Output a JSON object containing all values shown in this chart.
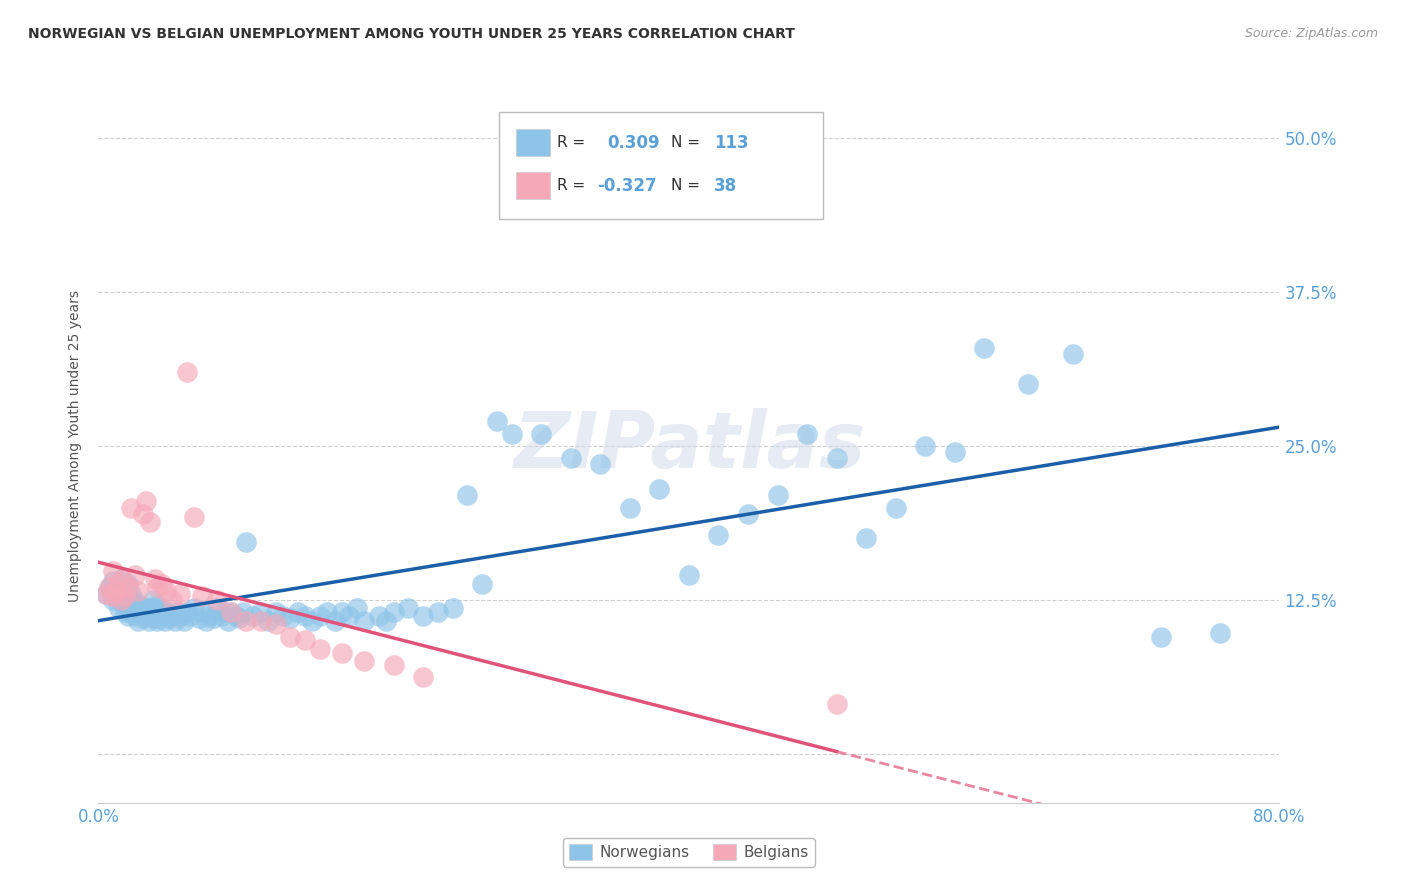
{
  "title": "NORWEGIAN VS BELGIAN UNEMPLOYMENT AMONG YOUTH UNDER 25 YEARS CORRELATION CHART",
  "source": "Source: ZipAtlas.com",
  "ylabel": "Unemployment Among Youth under 25 years",
  "xlim": [
    0.0,
    0.8
  ],
  "ylim": [
    -0.04,
    0.54
  ],
  "yticks": [
    0.0,
    0.125,
    0.25,
    0.375,
    0.5
  ],
  "ytick_labels": [
    "",
    "12.5%",
    "25.0%",
    "37.5%",
    "50.0%"
  ],
  "xticks": [
    0.0,
    0.1,
    0.2,
    0.3,
    0.4,
    0.5,
    0.6,
    0.7,
    0.8
  ],
  "xtick_labels": [
    "0.0%",
    "",
    "",
    "",
    "",
    "",
    "",
    "",
    "80.0%"
  ],
  "legend_r_norwegian": "0.309",
  "legend_n_norwegian": "113",
  "legend_r_belgian": "-0.327",
  "legend_n_belgian": "38",
  "norwegian_color": "#8ec4e8",
  "belgian_color": "#f5a8b8",
  "trend_norwegian_color": "#1a5fa8",
  "trend_belgian_color": "#e0547a",
  "watermark": "ZIPatlas",
  "background_color": "#ffffff",
  "grid_color": "#d0d0d0",
  "tick_label_color": "#5aa0d8",
  "norwegians_x": [
    0.005,
    0.008,
    0.01,
    0.01,
    0.012,
    0.013,
    0.014,
    0.015,
    0.016,
    0.016,
    0.018,
    0.019,
    0.02,
    0.02,
    0.02,
    0.021,
    0.022,
    0.022,
    0.023,
    0.024,
    0.025,
    0.025,
    0.026,
    0.027,
    0.028,
    0.029,
    0.03,
    0.03,
    0.031,
    0.032,
    0.033,
    0.034,
    0.035,
    0.036,
    0.037,
    0.038,
    0.039,
    0.04,
    0.041,
    0.042,
    0.043,
    0.044,
    0.045,
    0.046,
    0.047,
    0.048,
    0.05,
    0.052,
    0.054,
    0.056,
    0.058,
    0.06,
    0.062,
    0.065,
    0.068,
    0.07,
    0.073,
    0.075,
    0.078,
    0.08,
    0.083,
    0.085,
    0.088,
    0.09,
    0.093,
    0.095,
    0.098,
    0.1,
    0.105,
    0.11,
    0.115,
    0.12,
    0.125,
    0.13,
    0.135,
    0.14,
    0.145,
    0.15,
    0.155,
    0.16,
    0.165,
    0.17,
    0.175,
    0.18,
    0.19,
    0.195,
    0.2,
    0.21,
    0.22,
    0.23,
    0.24,
    0.25,
    0.26,
    0.27,
    0.28,
    0.3,
    0.32,
    0.34,
    0.36,
    0.38,
    0.4,
    0.42,
    0.44,
    0.46,
    0.48,
    0.5,
    0.52,
    0.54,
    0.56,
    0.58,
    0.6,
    0.63,
    0.66,
    0.72,
    0.76
  ],
  "norwegians_y": [
    0.13,
    0.135,
    0.125,
    0.14,
    0.128,
    0.132,
    0.118,
    0.135,
    0.122,
    0.142,
    0.115,
    0.128,
    0.112,
    0.12,
    0.138,
    0.125,
    0.115,
    0.13,
    0.118,
    0.125,
    0.112,
    0.122,
    0.118,
    0.108,
    0.115,
    0.12,
    0.11,
    0.115,
    0.118,
    0.112,
    0.115,
    0.108,
    0.112,
    0.118,
    0.125,
    0.11,
    0.12,
    0.108,
    0.115,
    0.112,
    0.118,
    0.115,
    0.108,
    0.112,
    0.115,
    0.11,
    0.112,
    0.108,
    0.115,
    0.112,
    0.108,
    0.115,
    0.112,
    0.118,
    0.11,
    0.115,
    0.108,
    0.112,
    0.11,
    0.118,
    0.112,
    0.115,
    0.108,
    0.115,
    0.112,
    0.11,
    0.115,
    0.172,
    0.112,
    0.115,
    0.108,
    0.115,
    0.112,
    0.11,
    0.115,
    0.112,
    0.108,
    0.112,
    0.115,
    0.108,
    0.115,
    0.112,
    0.118,
    0.108,
    0.112,
    0.108,
    0.115,
    0.118,
    0.112,
    0.115,
    0.118,
    0.21,
    0.138,
    0.27,
    0.26,
    0.26,
    0.24,
    0.235,
    0.2,
    0.215,
    0.145,
    0.178,
    0.195,
    0.21,
    0.26,
    0.24,
    0.175,
    0.2,
    0.25,
    0.245,
    0.33,
    0.3,
    0.325,
    0.095,
    0.098
  ],
  "belgians_x": [
    0.005,
    0.007,
    0.009,
    0.01,
    0.012,
    0.013,
    0.015,
    0.016,
    0.018,
    0.02,
    0.022,
    0.025,
    0.027,
    0.03,
    0.032,
    0.035,
    0.038,
    0.04,
    0.043,
    0.046,
    0.05,
    0.055,
    0.06,
    0.065,
    0.07,
    0.08,
    0.09,
    0.1,
    0.11,
    0.12,
    0.13,
    0.14,
    0.15,
    0.165,
    0.18,
    0.2,
    0.22,
    0.5
  ],
  "belgians_y": [
    0.13,
    0.135,
    0.128,
    0.148,
    0.132,
    0.138,
    0.125,
    0.142,
    0.128,
    0.135,
    0.2,
    0.145,
    0.132,
    0.195,
    0.205,
    0.188,
    0.142,
    0.135,
    0.138,
    0.132,
    0.125,
    0.13,
    0.31,
    0.192,
    0.128,
    0.125,
    0.115,
    0.108,
    0.108,
    0.105,
    0.095,
    0.092,
    0.085,
    0.082,
    0.075,
    0.072,
    0.062,
    0.04
  ]
}
